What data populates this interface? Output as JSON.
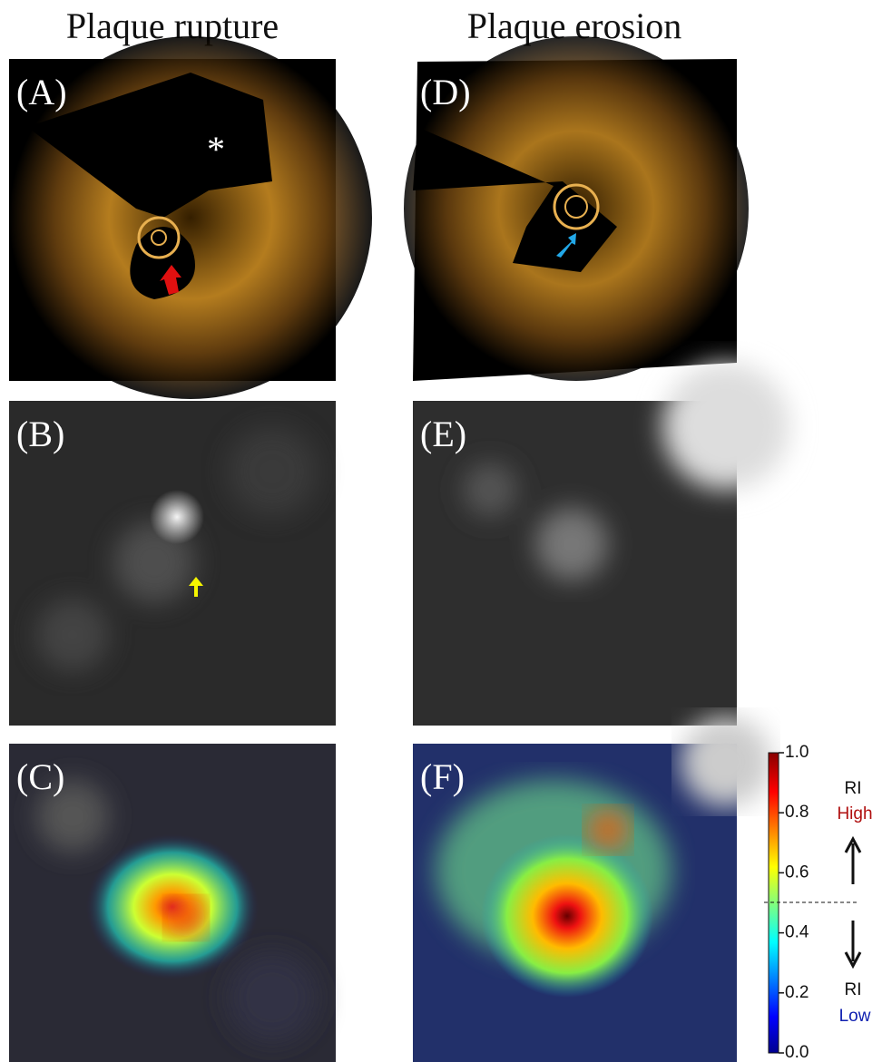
{
  "columns": [
    "Plaque rupture",
    "Plaque erosion"
  ],
  "panels": [
    {
      "label": "(A)",
      "note": "*"
    },
    {
      "label": "(B)"
    },
    {
      "label": "(C)"
    },
    {
      "label": "(D)"
    },
    {
      "label": "(E)"
    },
    {
      "label": "(F)"
    }
  ],
  "colorbar": {
    "ticks": [
      {
        "value": 0,
        "label": "0.0"
      },
      {
        "value": 0.2,
        "label": "0.2"
      },
      {
        "value": 0.4,
        "label": "0.4"
      },
      {
        "value": 0.6,
        "label": "0.6"
      },
      {
        "value": 0.8,
        "label": "0.8"
      },
      {
        "value": 1,
        "label": "1.0"
      }
    ],
    "high": {
      "title": "RI",
      "label": "High"
    },
    "low": {
      "title": "RI",
      "label": "Low"
    }
  }
}
